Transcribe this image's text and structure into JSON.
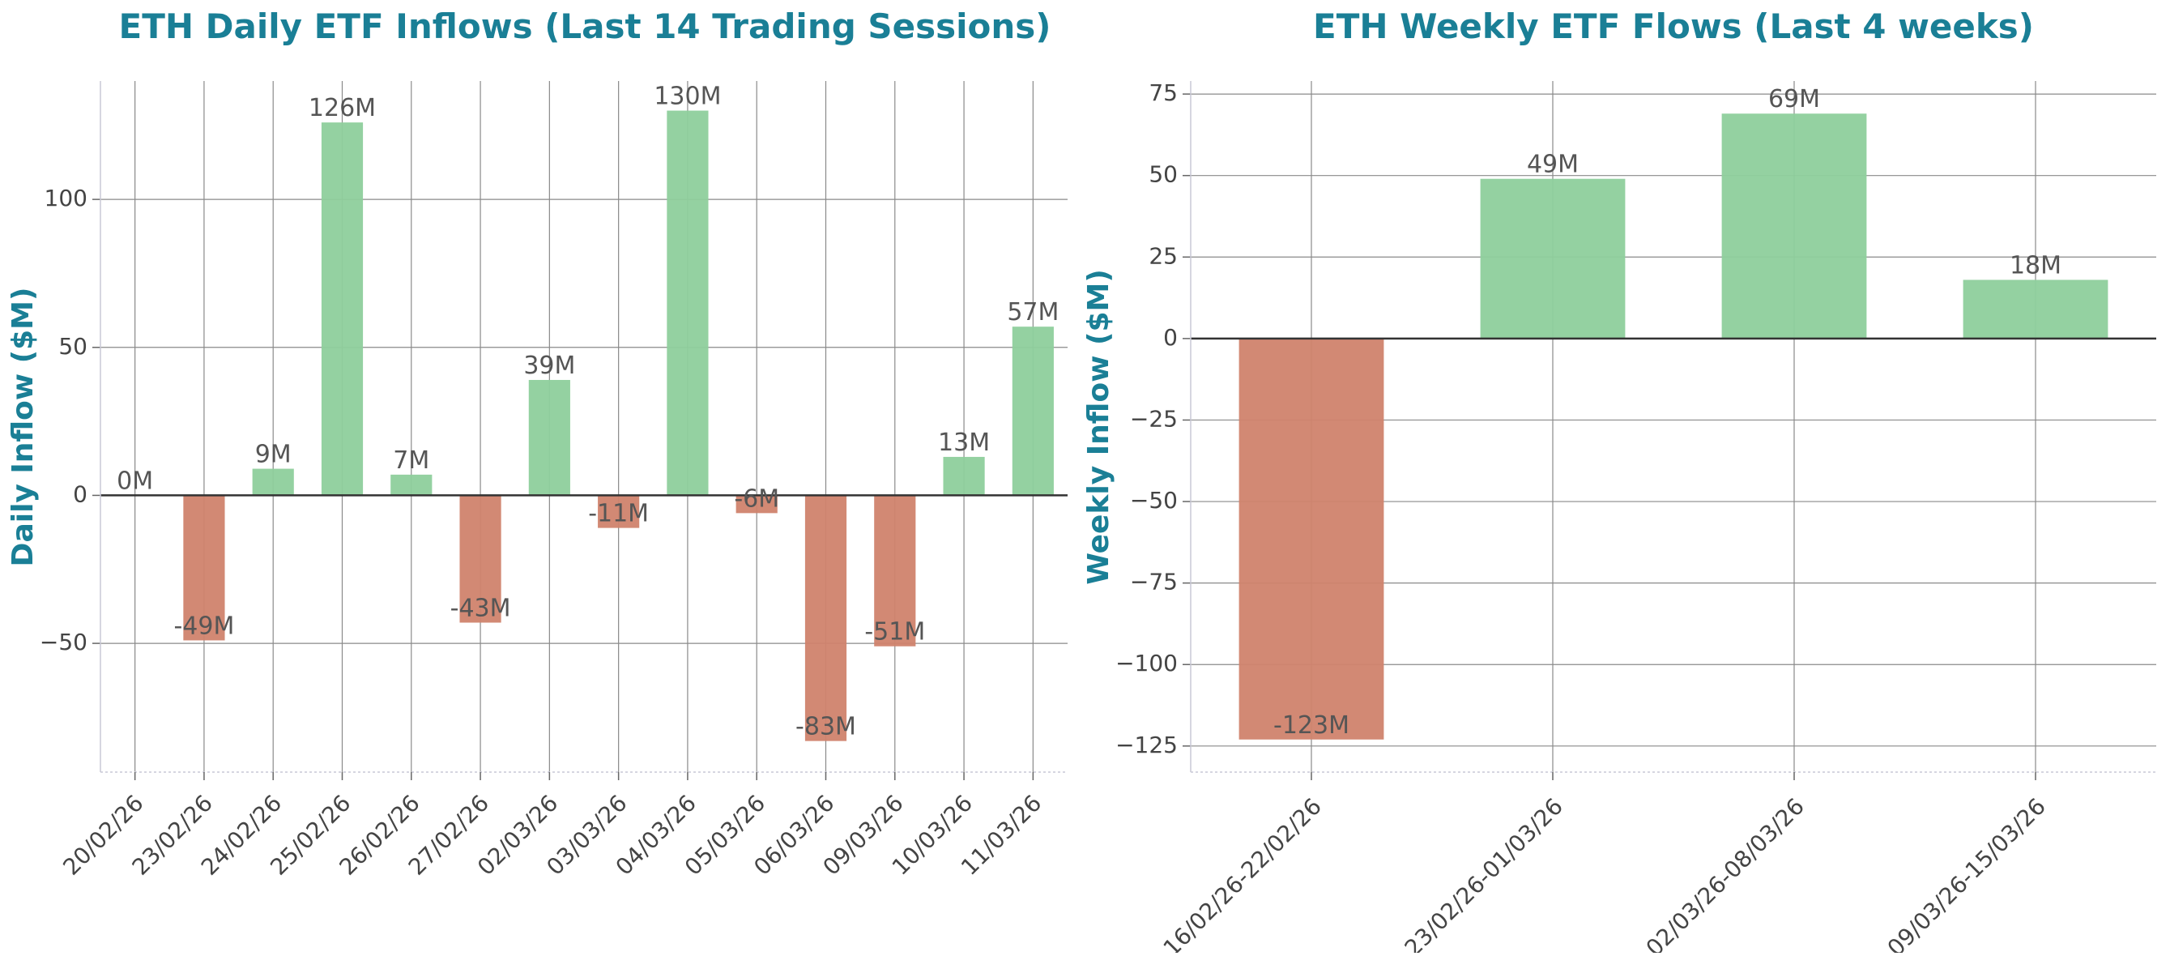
{
  "colors": {
    "title": "#1a7f96",
    "positive": "#8ecf9c",
    "negative": "#d0836d",
    "grid": "#8a8a8a",
    "zero_line": "#333333",
    "text": "#444444"
  },
  "chart_data": [
    {
      "type": "bar",
      "title": "ETH Daily ETF Inflows (Last 14 Trading Sessions)",
      "xlabel": "",
      "ylabel": "Daily Inflow ($M)",
      "categories": [
        "20/02/26",
        "23/02/26",
        "24/02/26",
        "25/02/26",
        "26/02/26",
        "27/02/26",
        "02/03/26",
        "03/03/26",
        "04/03/26",
        "05/03/26",
        "06/03/26",
        "09/03/26",
        "10/03/26",
        "11/03/26"
      ],
      "values": [
        0,
        -49,
        9,
        126,
        7,
        -43,
        39,
        -11,
        130,
        -6,
        -83,
        -51,
        13,
        57
      ],
      "data_labels": [
        "0M",
        "-49M",
        "9M",
        "126M",
        "7M",
        "-43M",
        "39M",
        "-11M",
        "130M",
        "-6M",
        "-83M",
        "-51M",
        "13M",
        "57M"
      ],
      "ylim": [
        -93.5,
        140
      ],
      "yticks": [
        -50,
        0,
        50,
        100
      ],
      "ytick_labels": [
        "−50",
        "0",
        "50",
        "100"
      ],
      "grid": true,
      "legend": "none"
    },
    {
      "type": "bar",
      "title": "ETH Weekly ETF Flows (Last 4 weeks)",
      "xlabel": "",
      "ylabel": "Weekly Inflow ($M)",
      "categories": [
        "16/02/26-22/02/26",
        "23/02/26-01/03/26",
        "02/03/26-08/03/26",
        "09/03/26-15/03/26"
      ],
      "values": [
        -123,
        49,
        69,
        18
      ],
      "data_labels": [
        "-123M",
        "49M",
        "69M",
        "18M"
      ],
      "ylim": [
        -133,
        79
      ],
      "yticks": [
        -125,
        -100,
        -75,
        -50,
        -25,
        0,
        25,
        50,
        75
      ],
      "ytick_labels": [
        "−125",
        "−100",
        "−75",
        "−50",
        "−25",
        "0",
        "25",
        "50",
        "75"
      ],
      "grid": true,
      "legend": "none"
    }
  ]
}
